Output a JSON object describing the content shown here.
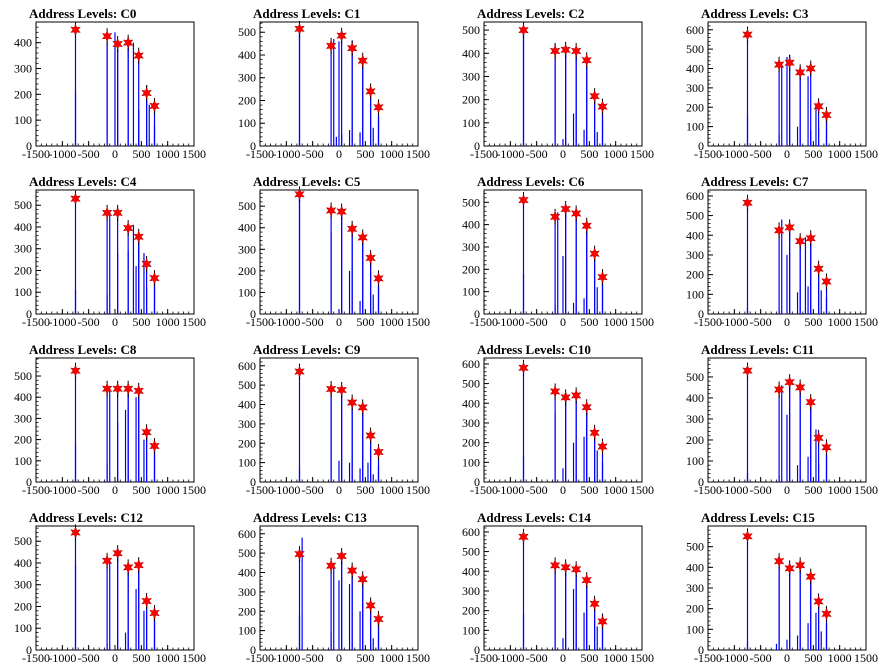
{
  "chart_data": [
    {
      "type": "bar",
      "title": "Address Levels: C0",
      "xlim": [
        -1500,
        1500
      ],
      "ylim": [
        0,
        480
      ],
      "yticks": [
        0,
        100,
        200,
        300,
        400
      ],
      "xticks": [
        -1500,
        -1000,
        -500,
        0,
        500,
        1000,
        1500
      ],
      "x": [
        -750,
        -150,
        50,
        250,
        450,
        600,
        750
      ],
      "values": [
        450,
        425,
        395,
        400,
        350,
        205,
        155
      ],
      "sub_bars": [
        [
          -750,
          210
        ],
        [
          -150,
          400
        ],
        [
          0,
          440
        ],
        [
          50,
          410
        ],
        [
          250,
          420
        ],
        [
          350,
          400
        ],
        [
          450,
          140
        ],
        [
          600,
          235
        ],
        [
          650,
          160
        ],
        [
          750,
          80
        ]
      ]
    },
    {
      "type": "bar",
      "title": "Address Levels: C1",
      "xlim": [
        -1500,
        1500
      ],
      "ylim": [
        0,
        545
      ],
      "yticks": [
        0,
        100,
        200,
        300,
        400,
        500
      ],
      "xticks": [
        -1500,
        -1000,
        -500,
        0,
        500,
        1000,
        1500
      ],
      "x": [
        -750,
        -150,
        50,
        250,
        450,
        600,
        750
      ],
      "values": [
        515,
        440,
        485,
        430,
        375,
        240,
        170
      ],
      "sub_bars": [
        [
          -750,
          520
        ],
        [
          -100,
          470
        ],
        [
          -50,
          40
        ],
        [
          0,
          460
        ],
        [
          50,
          50
        ],
        [
          200,
          70
        ],
        [
          250,
          460
        ],
        [
          400,
          60
        ],
        [
          450,
          380
        ],
        [
          600,
          260
        ],
        [
          650,
          80
        ],
        [
          750,
          130
        ]
      ]
    },
    {
      "type": "bar",
      "title": "Address Levels: C2",
      "xlim": [
        -1500,
        1500
      ],
      "ylim": [
        0,
        535
      ],
      "yticks": [
        0,
        100,
        200,
        300,
        400,
        500
      ],
      "xticks": [
        -1500,
        -1000,
        -500,
        0,
        500,
        1000,
        1500
      ],
      "x": [
        -750,
        -150,
        50,
        250,
        450,
        600,
        750
      ],
      "values": [
        500,
        410,
        415,
        410,
        370,
        215,
        170
      ],
      "sub_bars": [
        [
          -750,
          500
        ],
        [
          -150,
          440
        ],
        [
          0,
          30
        ],
        [
          50,
          430
        ],
        [
          200,
          140
        ],
        [
          250,
          420
        ],
        [
          400,
          70
        ],
        [
          450,
          340
        ],
        [
          600,
          220
        ],
        [
          650,
          60
        ],
        [
          750,
          140
        ]
      ]
    },
    {
      "type": "bar",
      "title": "Address Levels: C3",
      "xlim": [
        -1500,
        1500
      ],
      "ylim": [
        0,
        640
      ],
      "yticks": [
        0,
        100,
        200,
        300,
        400,
        500,
        600
      ],
      "xticks": [
        -1500,
        -1000,
        -500,
        0,
        500,
        1000,
        1500
      ],
      "x": [
        -750,
        -150,
        50,
        250,
        450,
        600,
        750
      ],
      "values": [
        575,
        420,
        430,
        380,
        400,
        205,
        160
      ],
      "sub_bars": [
        [
          -750,
          150
        ],
        [
          -150,
          60
        ],
        [
          -100,
          420
        ],
        [
          0,
          460
        ],
        [
          50,
          470
        ],
        [
          200,
          100
        ],
        [
          250,
          410
        ],
        [
          400,
          360
        ],
        [
          450,
          80
        ],
        [
          550,
          220
        ],
        [
          600,
          90
        ],
        [
          750,
          150
        ]
      ]
    },
    {
      "type": "bar",
      "title": "Address Levels: C4",
      "xlim": [
        -1500,
        1500
      ],
      "ylim": [
        0,
        570
      ],
      "yticks": [
        0,
        100,
        200,
        300,
        400,
        500
      ],
      "xticks": [
        -1500,
        -1000,
        -500,
        0,
        500,
        1000,
        1500
      ],
      "x": [
        -750,
        -150,
        50,
        250,
        450,
        600,
        750
      ],
      "values": [
        530,
        465,
        465,
        395,
        355,
        230,
        165
      ],
      "sub_bars": [
        [
          -750,
          110
        ],
        [
          -150,
          90
        ],
        [
          -100,
          470
        ],
        [
          50,
          280
        ],
        [
          250,
          290
        ],
        [
          350,
          410
        ],
        [
          400,
          220
        ],
        [
          450,
          370
        ],
        [
          550,
          280
        ],
        [
          600,
          120
        ],
        [
          750,
          165
        ]
      ]
    },
    {
      "type": "bar",
      "title": "Address Levels: C5",
      "xlim": [
        -1500,
        1500
      ],
      "ylim": [
        0,
        575
      ],
      "yticks": [
        0,
        100,
        200,
        300,
        400,
        500
      ],
      "xticks": [
        -1500,
        -1000,
        -500,
        0,
        500,
        1000,
        1500
      ],
      "x": [
        -750,
        -150,
        50,
        250,
        450,
        600,
        750
      ],
      "values": [
        555,
        480,
        475,
        395,
        355,
        260,
        165
      ],
      "sub_bars": [
        [
          -750,
          560
        ],
        [
          -150,
          380
        ],
        [
          0,
          20
        ],
        [
          50,
          490
        ],
        [
          200,
          200
        ],
        [
          250,
          410
        ],
        [
          400,
          60
        ],
        [
          450,
          370
        ],
        [
          600,
          280
        ],
        [
          650,
          90
        ],
        [
          750,
          130
        ]
      ]
    },
    {
      "type": "bar",
      "title": "Address Levels: C6",
      "xlim": [
        -1500,
        1500
      ],
      "ylim": [
        0,
        555
      ],
      "yticks": [
        0,
        100,
        200,
        300,
        400,
        500
      ],
      "xticks": [
        -1500,
        -1000,
        -500,
        0,
        500,
        1000,
        1500
      ],
      "x": [
        -750,
        -150,
        50,
        250,
        450,
        600,
        750
      ],
      "values": [
        510,
        435,
        470,
        450,
        395,
        270,
        165
      ],
      "sub_bars": [
        [
          -750,
          180
        ],
        [
          -150,
          40
        ],
        [
          -100,
          455
        ],
        [
          0,
          260
        ],
        [
          50,
          480
        ],
        [
          200,
          50
        ],
        [
          250,
          460
        ],
        [
          400,
          70
        ],
        [
          450,
          380
        ],
        [
          600,
          270
        ],
        [
          650,
          120
        ],
        [
          750,
          160
        ]
      ]
    },
    {
      "type": "bar",
      "title": "Address Levels: C7",
      "xlim": [
        -1500,
        1500
      ],
      "ylim": [
        0,
        630
      ],
      "yticks": [
        0,
        100,
        200,
        300,
        400,
        500,
        600
      ],
      "xticks": [
        -1500,
        -1000,
        -500,
        0,
        500,
        1000,
        1500
      ],
      "x": [
        -750,
        -150,
        50,
        250,
        450,
        600,
        750
      ],
      "values": [
        565,
        425,
        440,
        370,
        385,
        230,
        165
      ],
      "sub_bars": [
        [
          -750,
          30
        ],
        [
          -150,
          20
        ],
        [
          -100,
          480
        ],
        [
          0,
          300
        ],
        [
          50,
          450
        ],
        [
          200,
          110
        ],
        [
          250,
          390
        ],
        [
          350,
          390
        ],
        [
          400,
          140
        ],
        [
          450,
          370
        ],
        [
          600,
          240
        ],
        [
          650,
          120
        ],
        [
          750,
          80
        ]
      ]
    },
    {
      "type": "bar",
      "title": "Address Levels: C8",
      "xlim": [
        -1500,
        1500
      ],
      "ylim": [
        0,
        585
      ],
      "yticks": [
        0,
        100,
        200,
        300,
        400,
        500
      ],
      "xticks": [
        -1500,
        -1000,
        -500,
        0,
        500,
        1000,
        1500
      ],
      "x": [
        -750,
        -150,
        50,
        250,
        450,
        600,
        750
      ],
      "values": [
        525,
        440,
        440,
        440,
        430,
        235,
        170
      ],
      "sub_bars": [
        [
          -750,
          180
        ],
        [
          -150,
          90
        ],
        [
          -100,
          440
        ],
        [
          50,
          280
        ],
        [
          200,
          340
        ],
        [
          250,
          440
        ],
        [
          400,
          400
        ],
        [
          450,
          420
        ],
        [
          550,
          200
        ],
        [
          600,
          240
        ],
        [
          750,
          180
        ]
      ]
    },
    {
      "type": "bar",
      "title": "Address Levels: C9",
      "xlim": [
        -1500,
        1500
      ],
      "ylim": [
        0,
        640
      ],
      "yticks": [
        0,
        100,
        200,
        300,
        400,
        500,
        600
      ],
      "xticks": [
        -1500,
        -1000,
        -500,
        0,
        500,
        1000,
        1500
      ],
      "x": [
        -750,
        -150,
        50,
        250,
        450,
        600,
        750
      ],
      "values": [
        570,
        480,
        475,
        410,
        385,
        240,
        155
      ],
      "sub_bars": [
        [
          -750,
          70
        ],
        [
          -150,
          480
        ],
        [
          0,
          110
        ],
        [
          50,
          480
        ],
        [
          200,
          100
        ],
        [
          250,
          400
        ],
        [
          400,
          70
        ],
        [
          450,
          390
        ],
        [
          550,
          100
        ],
        [
          600,
          230
        ],
        [
          650,
          40
        ],
        [
          750,
          80
        ]
      ]
    },
    {
      "type": "bar",
      "title": "Address Levels: C10",
      "xlim": [
        -1500,
        1500
      ],
      "ylim": [
        0,
        630
      ],
      "yticks": [
        0,
        100,
        200,
        300,
        400,
        500,
        600
      ],
      "xticks": [
        -1500,
        -1000,
        -500,
        0,
        500,
        1000,
        1500
      ],
      "x": [
        -750,
        -150,
        50,
        250,
        450,
        600,
        750
      ],
      "values": [
        580,
        460,
        430,
        440,
        380,
        250,
        180
      ],
      "sub_bars": [
        [
          -750,
          130
        ],
        [
          -150,
          350
        ],
        [
          0,
          70
        ],
        [
          50,
          410
        ],
        [
          200,
          200
        ],
        [
          250,
          430
        ],
        [
          400,
          230
        ],
        [
          450,
          380
        ],
        [
          600,
          230
        ],
        [
          650,
          160
        ],
        [
          750,
          100
        ]
      ]
    },
    {
      "type": "bar",
      "title": "Address Levels: C11",
      "xlim": [
        -1500,
        1500
      ],
      "ylim": [
        0,
        590
      ],
      "yticks": [
        0,
        100,
        200,
        300,
        400,
        500
      ],
      "xticks": [
        -1500,
        -1000,
        -500,
        0,
        500,
        1000,
        1500
      ],
      "x": [
        -750,
        -150,
        50,
        250,
        450,
        600,
        750
      ],
      "values": [
        530,
        440,
        475,
        450,
        380,
        210,
        165
      ],
      "sub_bars": [
        [
          -750,
          40
        ],
        [
          -150,
          30
        ],
        [
          -100,
          460
        ],
        [
          0,
          320
        ],
        [
          50,
          470
        ],
        [
          200,
          80
        ],
        [
          250,
          440
        ],
        [
          400,
          120
        ],
        [
          450,
          370
        ],
        [
          550,
          250
        ],
        [
          600,
          90
        ],
        [
          750,
          130
        ]
      ]
    },
    {
      "type": "bar",
      "title": "Address Levels: C12",
      "xlim": [
        -1500,
        1500
      ],
      "ylim": [
        0,
        570
      ],
      "yticks": [
        0,
        100,
        200,
        300,
        400,
        500
      ],
      "xticks": [
        -1500,
        -1000,
        -500,
        0,
        500,
        1000,
        1500
      ],
      "x": [
        -750,
        -150,
        50,
        250,
        450,
        600,
        750
      ],
      "values": [
        540,
        410,
        445,
        380,
        390,
        225,
        170
      ],
      "sub_bars": [
        [
          -750,
          390
        ],
        [
          -150,
          30
        ],
        [
          -100,
          410
        ],
        [
          50,
          450
        ],
        [
          200,
          80
        ],
        [
          250,
          390
        ],
        [
          400,
          280
        ],
        [
          450,
          400
        ],
        [
          550,
          180
        ],
        [
          600,
          230
        ],
        [
          750,
          150
        ]
      ]
    },
    {
      "type": "bar",
      "title": "Address Levels: C13",
      "xlim": [
        -1500,
        1500
      ],
      "ylim": [
        0,
        640
      ],
      "yticks": [
        0,
        100,
        200,
        300,
        400,
        500,
        600
      ],
      "xticks": [
        -1500,
        -1000,
        -500,
        0,
        500,
        1000,
        1500
      ],
      "x": [
        -750,
        -150,
        50,
        250,
        450,
        600,
        750
      ],
      "values": [
        495,
        435,
        485,
        410,
        365,
        230,
        160
      ],
      "sub_bars": [
        [
          -750,
          180
        ],
        [
          -700,
          580
        ],
        [
          -150,
          90
        ],
        [
          -100,
          450
        ],
        [
          0,
          360
        ],
        [
          50,
          470
        ],
        [
          200,
          340
        ],
        [
          250,
          400
        ],
        [
          400,
          200
        ],
        [
          450,
          360
        ],
        [
          600,
          230
        ],
        [
          650,
          60
        ],
        [
          750,
          140
        ]
      ]
    },
    {
      "type": "bar",
      "title": "Address Levels: C14",
      "xlim": [
        -1500,
        1500
      ],
      "ylim": [
        0,
        630
      ],
      "yticks": [
        0,
        100,
        200,
        300,
        400,
        500,
        600
      ],
      "xticks": [
        -1500,
        -1000,
        -500,
        0,
        500,
        1000,
        1500
      ],
      "x": [
        -750,
        -150,
        50,
        250,
        450,
        600,
        750
      ],
      "values": [
        575,
        430,
        420,
        410,
        355,
        235,
        145
      ],
      "sub_bars": [
        [
          -750,
          180
        ],
        [
          -150,
          430
        ],
        [
          0,
          60
        ],
        [
          50,
          410
        ],
        [
          200,
          310
        ],
        [
          250,
          410
        ],
        [
          400,
          190
        ],
        [
          450,
          360
        ],
        [
          600,
          220
        ],
        [
          650,
          120
        ],
        [
          750,
          180
        ]
      ]
    },
    {
      "type": "bar",
      "title": "Address Levels: C15",
      "xlim": [
        -1500,
        1500
      ],
      "ylim": [
        0,
        600
      ],
      "yticks": [
        0,
        100,
        200,
        300,
        400,
        500
      ],
      "xticks": [
        -1500,
        -1000,
        -500,
        0,
        500,
        1000,
        1500
      ],
      "x": [
        -750,
        -150,
        50,
        250,
        450,
        600,
        750
      ],
      "values": [
        550,
        430,
        395,
        410,
        355,
        235,
        175
      ],
      "sub_bars": [
        [
          -750,
          40
        ],
        [
          -200,
          30
        ],
        [
          -150,
          420
        ],
        [
          0,
          50
        ],
        [
          50,
          400
        ],
        [
          200,
          70
        ],
        [
          250,
          420
        ],
        [
          400,
          130
        ],
        [
          450,
          370
        ],
        [
          550,
          180
        ],
        [
          600,
          210
        ],
        [
          650,
          90
        ],
        [
          750,
          130
        ]
      ]
    }
  ],
  "colors": {
    "bar": "#0000ff",
    "marker": "#ff0000",
    "axis": "#000000"
  }
}
